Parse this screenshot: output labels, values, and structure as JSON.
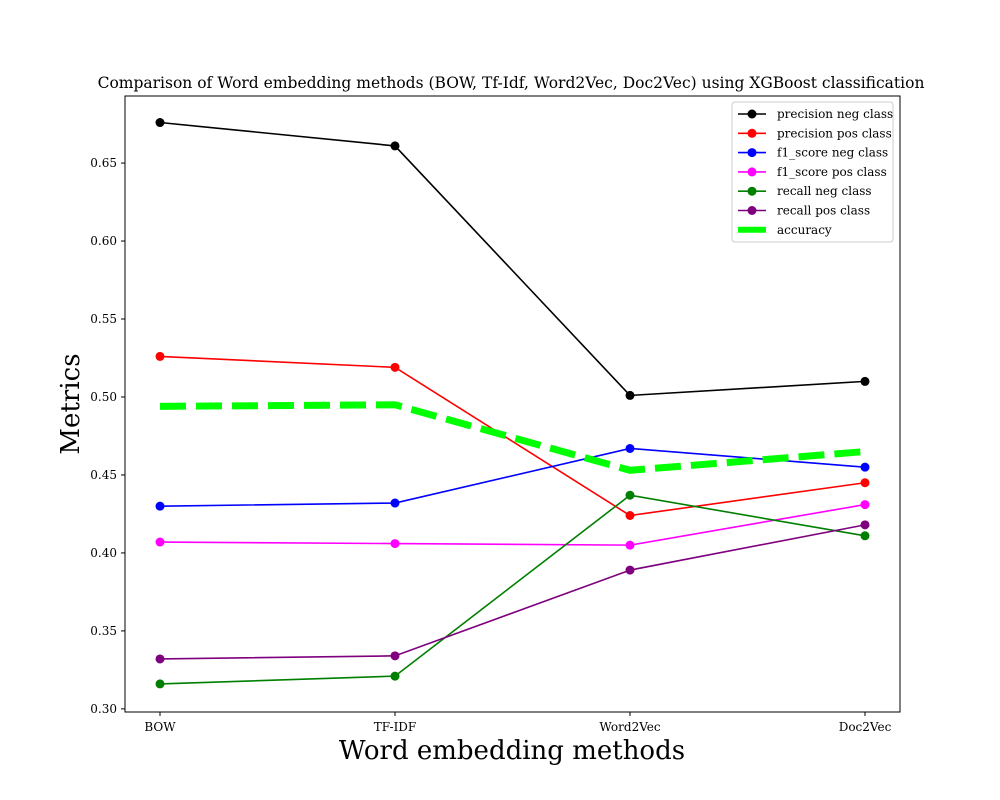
{
  "chart_data": {
    "type": "line",
    "title": "Comparison of Word embedding methods (BOW, Tf-Idf, Word2Vec, Doc2Vec) using XGBoost classification",
    "xlabel": "Word embedding methods",
    "ylabel": "Metrics",
    "categories": [
      "BOW",
      "TF-IDF",
      "Word2Vec",
      "Doc2Vec"
    ],
    "ylim": [
      0.298,
      0.693
    ],
    "yticks": [
      "0.30",
      "0.35",
      "0.40",
      "0.45",
      "0.50",
      "0.55",
      "0.60",
      "0.65"
    ],
    "grid": false,
    "legend_position": "top-right",
    "series": [
      {
        "name": "precision neg class",
        "color": "#000000",
        "dashed": false,
        "values": [
          0.676,
          0.661,
          0.501,
          0.51
        ]
      },
      {
        "name": "precision pos class",
        "color": "#ff0000",
        "dashed": false,
        "values": [
          0.526,
          0.519,
          0.424,
          0.445
        ]
      },
      {
        "name": "f1_score neg class",
        "color": "#0000ff",
        "dashed": false,
        "values": [
          0.43,
          0.432,
          0.467,
          0.455
        ]
      },
      {
        "name": "f1_score pos class",
        "color": "#ff00ff",
        "dashed": false,
        "values": [
          0.407,
          0.406,
          0.405,
          0.431
        ]
      },
      {
        "name": "recall neg class",
        "color": "#007f00",
        "dashed": false,
        "values": [
          0.316,
          0.321,
          0.437,
          0.411
        ]
      },
      {
        "name": "recall pos class",
        "color": "#7f007f",
        "dashed": false,
        "values": [
          0.332,
          0.334,
          0.389,
          0.418
        ]
      },
      {
        "name": "accuracy",
        "color": "#00ff00",
        "dashed": true,
        "values": [
          0.494,
          0.495,
          0.453,
          0.465
        ]
      }
    ]
  }
}
